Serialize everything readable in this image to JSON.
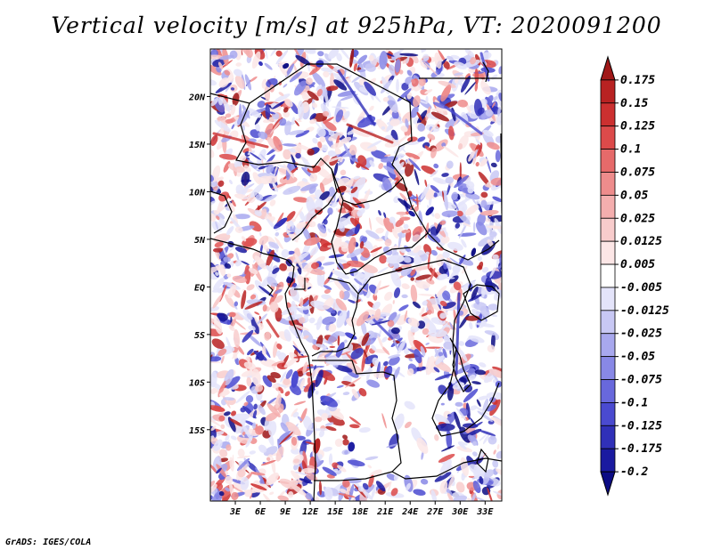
{
  "title": "Vertical velocity [m/s] at 925hPa, VT: 2020091200",
  "footer": "GrADS: IGES/COLA",
  "map": {
    "variable": "Vertical velocity",
    "units": "m/s",
    "level": "925hPa",
    "valid_time": "2020091200",
    "lon_range": [
      0,
      35
    ],
    "lat_range": [
      -22.5,
      25
    ],
    "lon_ticks": [
      "3E",
      "6E",
      "9E",
      "12E",
      "15E",
      "18E",
      "21E",
      "24E",
      "27E",
      "30E",
      "33E"
    ],
    "lat_ticks": [
      "20N",
      "15N",
      "10N",
      "5N",
      "EQ",
      "5S",
      "10S",
      "15S"
    ],
    "colors": {
      "positive": "#d03030",
      "negative": "#4040d8",
      "borders": "#000000"
    }
  },
  "colorbar": {
    "labels": [
      "0.175",
      "0.15",
      "0.125",
      "0.1",
      "0.075",
      "0.05",
      "0.025",
      "0.0125",
      "0.005",
      "-0.005",
      "-0.0125",
      "-0.025",
      "-0.05",
      "-0.075",
      "-0.1",
      "-0.125",
      "-0.175",
      "-0.2"
    ],
    "colors": [
      "#a01818",
      "#b82222",
      "#cc3030",
      "#dc4a4a",
      "#e66a6a",
      "#ee8c8c",
      "#f4aeae",
      "#f8cccc",
      "#fce6e6",
      "#ffffff",
      "#e4e4fa",
      "#c8c8f4",
      "#a8a8ee",
      "#8888e6",
      "#6868dc",
      "#4a4ad0",
      "#3030b8",
      "#1a1aa0",
      "#0c0c84"
    ]
  }
}
